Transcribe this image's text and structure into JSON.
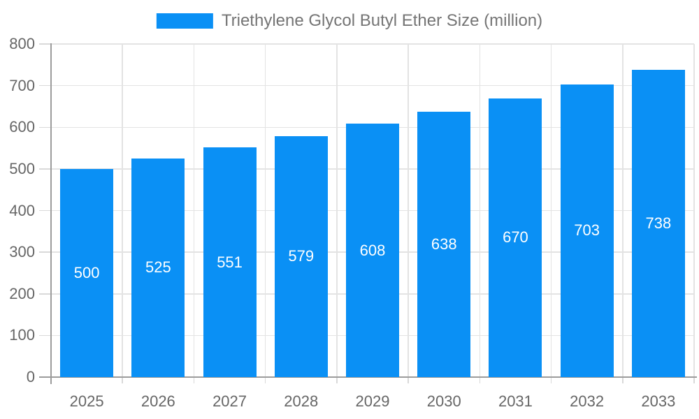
{
  "legend": {
    "label": "Triethylene Glycol Butyl Ether Size (million)"
  },
  "colors": {
    "background": "#ffffff",
    "bar": "#0a90f5",
    "bar_label": "#ffffff",
    "grid": "#e3e3e3",
    "tick": "#d9d9d9",
    "axis_line": "#9c9c9c",
    "axis_label": "#666666",
    "legend_text": "#757575"
  },
  "chart_data": {
    "type": "bar",
    "title": "",
    "categories": [
      "2025",
      "2026",
      "2027",
      "2028",
      "2029",
      "2030",
      "2031",
      "2032",
      "2033"
    ],
    "series": [
      {
        "name": "Triethylene Glycol Butyl Ether Size (million)",
        "values": [
          500,
          525,
          551,
          579,
          608,
          638,
          670,
          703,
          738
        ],
        "color": "#0a90f5"
      }
    ],
    "xlabel": "",
    "ylabel": "",
    "ylim": [
      0,
      800
    ],
    "ytick_step": 100,
    "ytick_labels": [
      "0",
      "100",
      "200",
      "300",
      "400",
      "500",
      "600",
      "700",
      "800"
    ],
    "grid": true,
    "legend_position": "top-center",
    "value_labels": "inside-middle-white"
  }
}
